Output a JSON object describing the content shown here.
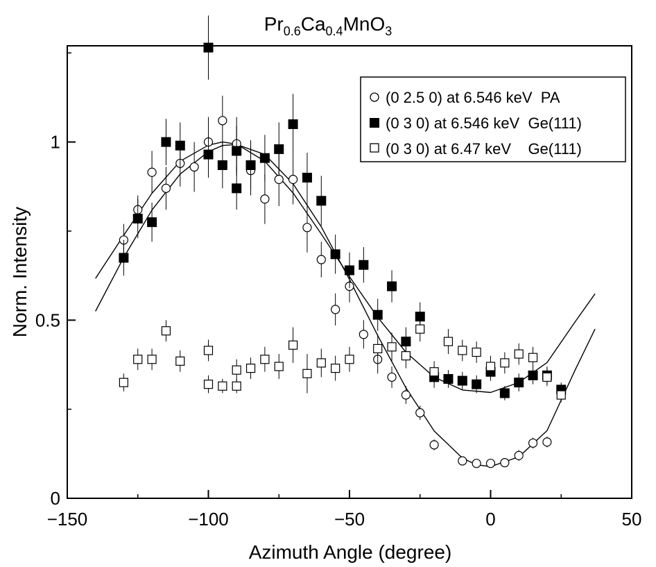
{
  "chart_data": {
    "type": "scatter",
    "title": {
      "parts": [
        {
          "text": "Pr",
          "sub": false
        },
        {
          "text": "0.6",
          "sub": true
        },
        {
          "text": "Ca",
          "sub": false
        },
        {
          "text": "0.4",
          "sub": true
        },
        {
          "text": "MnO",
          "sub": false
        },
        {
          "text": "3",
          "sub": true
        }
      ]
    },
    "xlabel": "Azimuth Angle (degree)",
    "ylabel": "Norm. Intensity",
    "xlim": [
      -150,
      50
    ],
    "ylim": [
      0,
      1.27
    ],
    "x_ticks": [
      -150,
      -100,
      -50,
      0,
      50
    ],
    "x_tick_labels": [
      "−150",
      "−100",
      "−50",
      "0",
      "50"
    ],
    "y_ticks": [
      0,
      0.5,
      1
    ],
    "y_tick_labels": [
      "0",
      "0.5",
      "1"
    ],
    "grid": false,
    "legend_position": "top-right",
    "series": [
      {
        "name": "(0 2.5 0) at 6.546 keV  PA",
        "marker": "open-circle",
        "points": [
          {
            "x": -130,
            "y": 0.725,
            "err": 0.045
          },
          {
            "x": -125,
            "y": 0.81,
            "err": 0.04
          },
          {
            "x": -120,
            "y": 0.915,
            "err": 0.06
          },
          {
            "x": -115,
            "y": 0.87,
            "err": 0.06
          },
          {
            "x": -110,
            "y": 0.94,
            "err": 0.065
          },
          {
            "x": -105,
            "y": 0.93,
            "err": 0.07
          },
          {
            "x": -100,
            "y": 1.0,
            "err": 0.07
          },
          {
            "x": -95,
            "y": 1.06,
            "err": 0.07
          },
          {
            "x": -90,
            "y": 0.995,
            "err": 0.075
          },
          {
            "x": -85,
            "y": 0.92,
            "err": 0.07
          },
          {
            "x": -80,
            "y": 0.84,
            "err": 0.07
          },
          {
            "x": -75,
            "y": 0.895,
            "err": 0.075
          },
          {
            "x": -70,
            "y": 0.895,
            "err": 0.07
          },
          {
            "x": -65,
            "y": 0.76,
            "err": 0.07
          },
          {
            "x": -60,
            "y": 0.67,
            "err": 0.05
          },
          {
            "x": -55,
            "y": 0.53,
            "err": 0.045
          },
          {
            "x": -50,
            "y": 0.595,
            "err": 0.045
          },
          {
            "x": -45,
            "y": 0.46,
            "err": 0.04
          },
          {
            "x": -40,
            "y": 0.39,
            "err": 0.04
          },
          {
            "x": -35,
            "y": 0.34,
            "err": 0.03
          },
          {
            "x": -30,
            "y": 0.29,
            "err": 0.025
          },
          {
            "x": -25,
            "y": 0.24,
            "err": 0.02
          },
          {
            "x": -20,
            "y": 0.15,
            "err": 0.015
          },
          {
            "x": -10,
            "y": 0.105,
            "err": 0.012
          },
          {
            "x": -5,
            "y": 0.098,
            "err": 0.012
          },
          {
            "x": 0,
            "y": 0.098,
            "err": 0.012
          },
          {
            "x": 5,
            "y": 0.1,
            "err": 0.012
          },
          {
            "x": 10,
            "y": 0.12,
            "err": 0.015
          },
          {
            "x": 15,
            "y": 0.155,
            "err": 0.015
          },
          {
            "x": 20,
            "y": 0.158,
            "err": 0.015
          }
        ]
      },
      {
        "name": "(0 3 0) at 6.546 keV  Ge(111)",
        "marker": "filled-square",
        "points": [
          {
            "x": -130,
            "y": 0.675,
            "err": 0.05
          },
          {
            "x": -125,
            "y": 0.785,
            "err": 0.055
          },
          {
            "x": -120,
            "y": 0.775,
            "err": 0.055
          },
          {
            "x": -115,
            "y": 1.0,
            "err": 0.065
          },
          {
            "x": -110,
            "y": 0.99,
            "err": 0.065
          },
          {
            "x": -100,
            "y": 1.265,
            "err": 0.09
          },
          {
            "x": -100,
            "y": 0.965,
            "err": 0.065
          },
          {
            "x": -95,
            "y": 0.935,
            "err": 0.065
          },
          {
            "x": -90,
            "y": 0.975,
            "err": 0.07
          },
          {
            "x": -90,
            "y": 0.87,
            "err": 0.06
          },
          {
            "x": -85,
            "y": 0.935,
            "err": 0.07
          },
          {
            "x": -80,
            "y": 0.955,
            "err": 0.065
          },
          {
            "x": -75,
            "y": 0.98,
            "err": 0.075
          },
          {
            "x": -70,
            "y": 1.05,
            "err": 0.085
          },
          {
            "x": -65,
            "y": 0.9,
            "err": 0.07
          },
          {
            "x": -60,
            "y": 0.835,
            "err": 0.07
          },
          {
            "x": -55,
            "y": 0.685,
            "err": 0.055
          },
          {
            "x": -50,
            "y": 0.64,
            "err": 0.05
          },
          {
            "x": -45,
            "y": 0.655,
            "err": 0.05
          },
          {
            "x": -40,
            "y": 0.515,
            "err": 0.045
          },
          {
            "x": -35,
            "y": 0.595,
            "err": 0.045
          },
          {
            "x": -30,
            "y": 0.44,
            "err": 0.04
          },
          {
            "x": -25,
            "y": 0.51,
            "err": 0.04
          },
          {
            "x": -20,
            "y": 0.34,
            "err": 0.03
          },
          {
            "x": -15,
            "y": 0.335,
            "err": 0.025
          },
          {
            "x": -10,
            "y": 0.33,
            "err": 0.025
          },
          {
            "x": -5,
            "y": 0.32,
            "err": 0.025
          },
          {
            "x": 0,
            "y": 0.355,
            "err": 0.025
          },
          {
            "x": 5,
            "y": 0.295,
            "err": 0.02
          },
          {
            "x": 10,
            "y": 0.325,
            "err": 0.025
          },
          {
            "x": 15,
            "y": 0.345,
            "err": 0.025
          },
          {
            "x": 20,
            "y": 0.345,
            "err": 0.025
          },
          {
            "x": 25,
            "y": 0.305,
            "err": 0.02
          }
        ]
      },
      {
        "name": "(0 3 0) at 6.47 keV    Ge(111)",
        "marker": "open-square",
        "points": [
          {
            "x": -130,
            "y": 0.325,
            "err": 0.025
          },
          {
            "x": -125,
            "y": 0.39,
            "err": 0.03
          },
          {
            "x": -120,
            "y": 0.39,
            "err": 0.03
          },
          {
            "x": -115,
            "y": 0.47,
            "err": 0.03
          },
          {
            "x": -110,
            "y": 0.385,
            "err": 0.03
          },
          {
            "x": -100,
            "y": 0.415,
            "err": 0.03
          },
          {
            "x": -100,
            "y": 0.32,
            "err": 0.025
          },
          {
            "x": -95,
            "y": 0.315,
            "err": 0.02
          },
          {
            "x": -90,
            "y": 0.315,
            "err": 0.02
          },
          {
            "x": -90,
            "y": 0.36,
            "err": 0.03
          },
          {
            "x": -85,
            "y": 0.365,
            "err": 0.03
          },
          {
            "x": -80,
            "y": 0.39,
            "err": 0.035
          },
          {
            "x": -75,
            "y": 0.37,
            "err": 0.035
          },
          {
            "x": -70,
            "y": 0.43,
            "err": 0.05
          },
          {
            "x": -65,
            "y": 0.35,
            "err": 0.055
          },
          {
            "x": -60,
            "y": 0.38,
            "err": 0.04
          },
          {
            "x": -55,
            "y": 0.365,
            "err": 0.035
          },
          {
            "x": -50,
            "y": 0.39,
            "err": 0.035
          },
          {
            "x": -40,
            "y": 0.42,
            "err": 0.04
          },
          {
            "x": -35,
            "y": 0.425,
            "err": 0.04
          },
          {
            "x": -30,
            "y": 0.4,
            "err": 0.035
          },
          {
            "x": -25,
            "y": 0.475,
            "err": 0.035
          },
          {
            "x": -20,
            "y": 0.355,
            "err": 0.03
          },
          {
            "x": -15,
            "y": 0.44,
            "err": 0.035
          },
          {
            "x": -10,
            "y": 0.415,
            "err": 0.03
          },
          {
            "x": -5,
            "y": 0.41,
            "err": 0.03
          },
          {
            "x": 0,
            "y": 0.37,
            "err": 0.03
          },
          {
            "x": 5,
            "y": 0.38,
            "err": 0.03
          },
          {
            "x": 10,
            "y": 0.405,
            "err": 0.03
          },
          {
            "x": 15,
            "y": 0.395,
            "err": 0.03
          },
          {
            "x": 20,
            "y": 0.34,
            "err": 0.025
          },
          {
            "x": 25,
            "y": 0.29,
            "err": 0.02
          }
        ]
      }
    ],
    "fit_curves": [
      {
        "points": [
          [
            -140,
            0.525
          ],
          [
            -130,
            0.676
          ],
          [
            -120,
            0.809
          ],
          [
            -110,
            0.91
          ],
          [
            -100,
            0.973
          ],
          [
            -95,
            0.99
          ],
          [
            -90,
            0.993
          ],
          [
            -80,
            0.965
          ],
          [
            -70,
            0.883
          ],
          [
            -60,
            0.762
          ],
          [
            -50,
            0.614
          ],
          [
            -40,
            0.457
          ],
          [
            -30,
            0.31
          ],
          [
            -20,
            0.189
          ],
          [
            -10,
            0.113
          ],
          [
            -5,
            0.094
          ],
          [
            0,
            0.089
          ],
          [
            10,
            0.116
          ],
          [
            20,
            0.19
          ],
          [
            30,
            0.361
          ],
          [
            37,
            0.475
          ]
        ]
      },
      {
        "points": [
          [
            -140,
            0.617
          ],
          [
            -130,
            0.738
          ],
          [
            -120,
            0.856
          ],
          [
            -110,
            0.946
          ],
          [
            -100,
            0.991
          ],
          [
            -95,
            1.0
          ],
          [
            -90,
            0.994
          ],
          [
            -80,
            0.946
          ],
          [
            -70,
            0.857
          ],
          [
            -60,
            0.742
          ],
          [
            -50,
            0.622
          ],
          [
            -40,
            0.508
          ],
          [
            -30,
            0.41
          ],
          [
            -20,
            0.34
          ],
          [
            -10,
            0.304
          ],
          [
            0,
            0.297
          ],
          [
            10,
            0.325
          ],
          [
            20,
            0.381
          ],
          [
            30,
            0.496
          ],
          [
            37,
            0.574
          ]
        ]
      }
    ]
  }
}
